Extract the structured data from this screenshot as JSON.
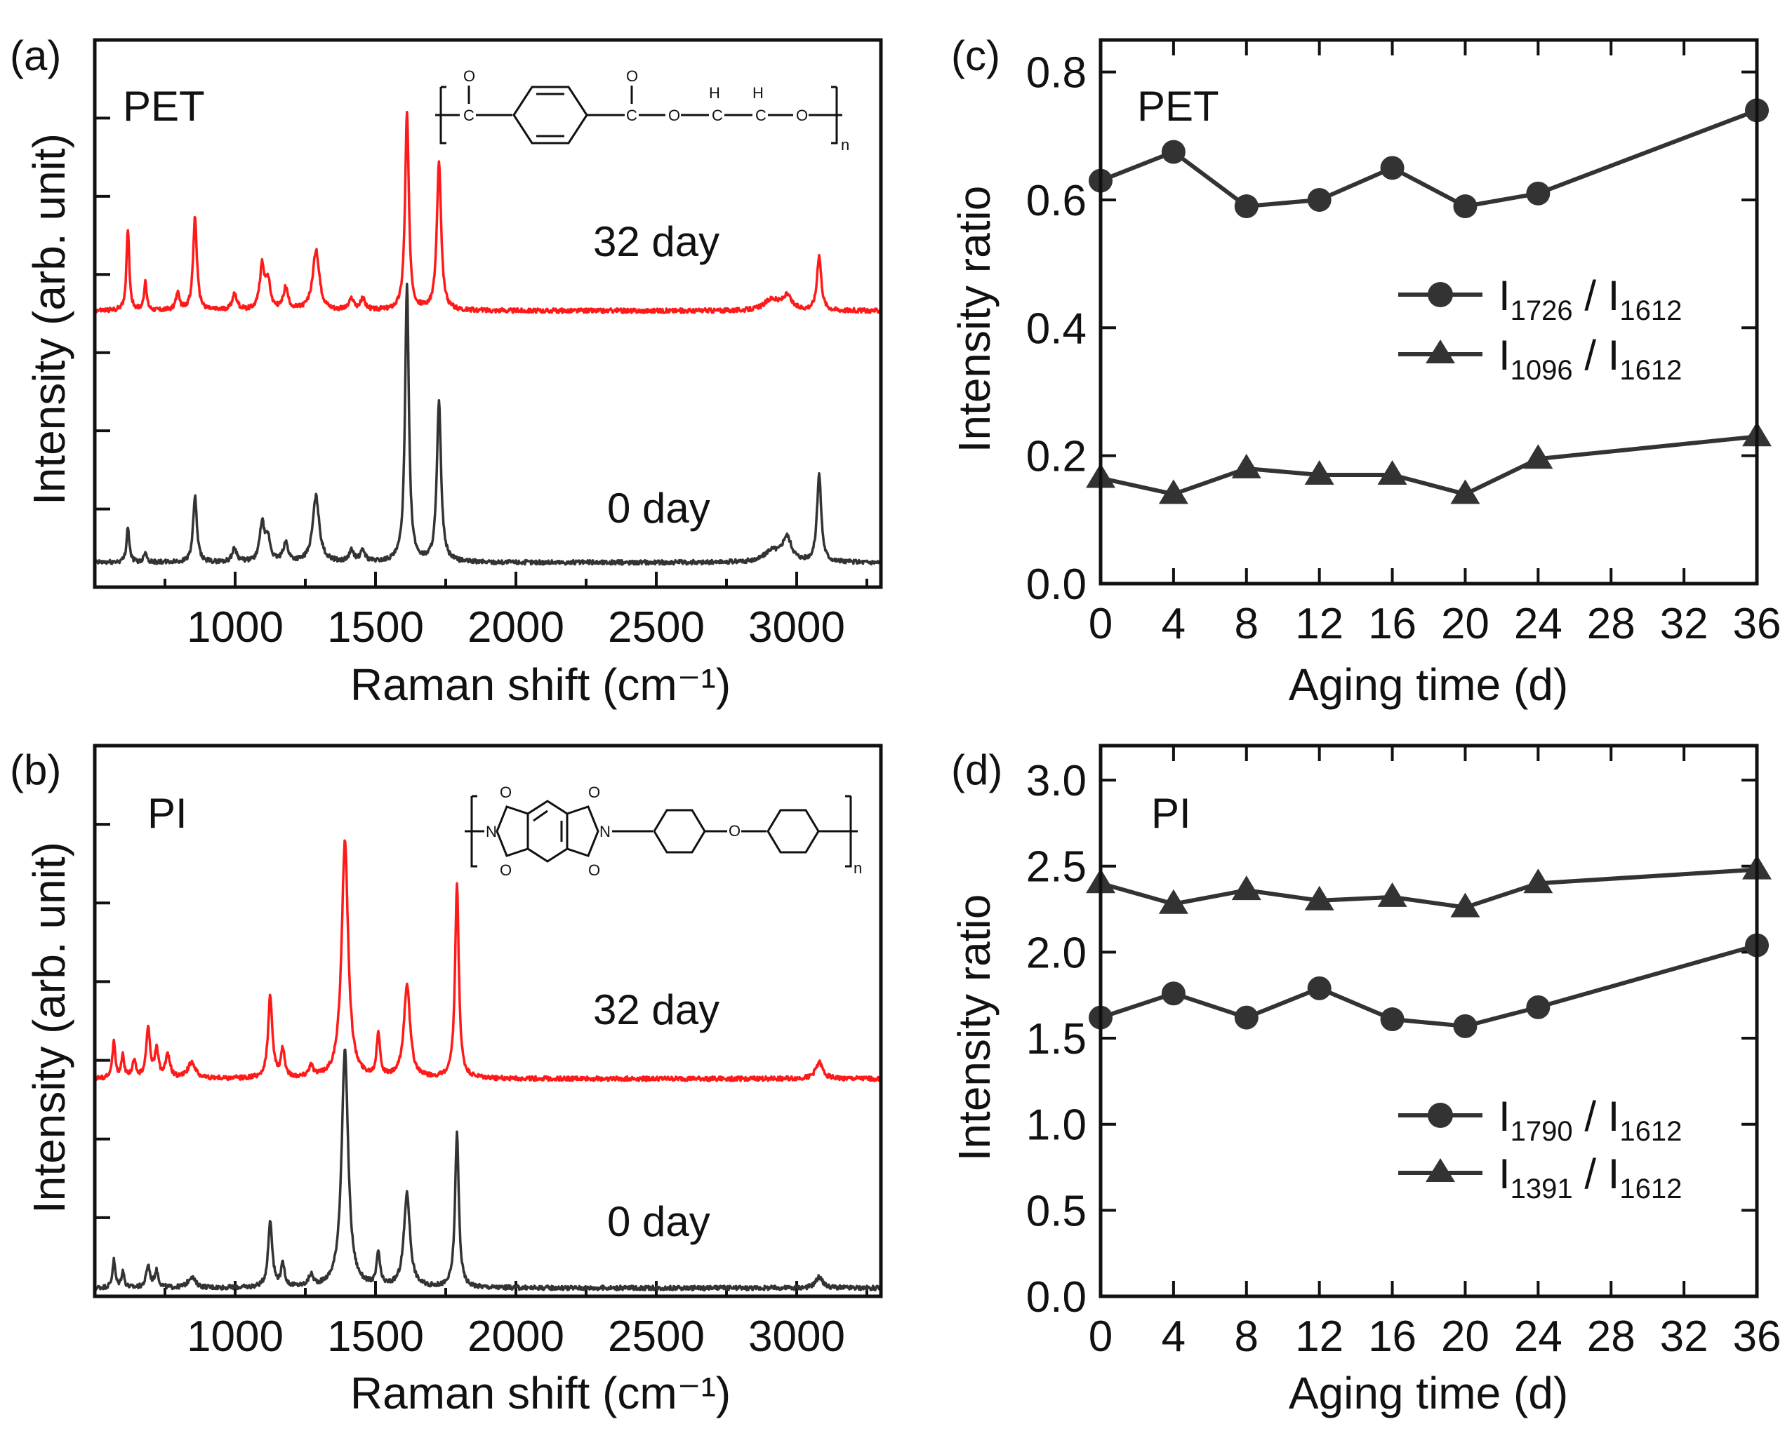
{
  "colors": {
    "day32": "#ff1a1a",
    "day0": "#333333",
    "marker": "#333333",
    "axis": "#111111"
  },
  "chart_data": [
    {
      "id": "a",
      "panel_label": "(a)",
      "type": "line",
      "title": "PET",
      "xlabel": "Raman shift (cm⁻¹)",
      "ylabel": "Intensity (arb. unit)",
      "xlim": [
        500,
        3300
      ],
      "ylim": [
        0,
        1
      ],
      "xticks": [
        1000,
        1500,
        2000,
        2500,
        3000
      ],
      "xtick_labels": [
        "1000",
        "1500",
        "2000",
        "2500",
        "3000"
      ],
      "series": [
        {
          "name": "32 day",
          "label": "32 day",
          "color": "#ff1a1a",
          "baseline": 0.505,
          "peaks": [
            [
              618,
              0.15,
              6
            ],
            [
              680,
              0.05,
              6
            ],
            [
              795,
              0.03,
              8
            ],
            [
              857,
              0.17,
              8
            ],
            [
              998,
              0.03,
              10
            ],
            [
              1096,
              0.08,
              10
            ],
            [
              1117,
              0.05,
              10
            ],
            [
              1180,
              0.04,
              10
            ],
            [
              1288,
              0.11,
              14
            ],
            [
              1415,
              0.02,
              10
            ],
            [
              1455,
              0.02,
              10
            ],
            [
              1612,
              0.36,
              8
            ],
            [
              1726,
              0.27,
              9
            ],
            [
              2910,
              0.02,
              30
            ],
            [
              2965,
              0.025,
              20
            ],
            [
              3080,
              0.1,
              9
            ]
          ]
        },
        {
          "name": "0 day",
          "label": "0 day",
          "color": "#333333",
          "baseline": 0.045,
          "peaks": [
            [
              618,
              0.065,
              6
            ],
            [
              680,
              0.02,
              6
            ],
            [
              857,
              0.12,
              8
            ],
            [
              998,
              0.025,
              10
            ],
            [
              1096,
              0.07,
              10
            ],
            [
              1117,
              0.04,
              10
            ],
            [
              1180,
              0.035,
              10
            ],
            [
              1288,
              0.12,
              14
            ],
            [
              1415,
              0.02,
              10
            ],
            [
              1455,
              0.02,
              10
            ],
            [
              1612,
              0.51,
              8
            ],
            [
              1726,
              0.29,
              9
            ],
            [
              2910,
              0.02,
              30
            ],
            [
              2965,
              0.045,
              20
            ],
            [
              3080,
              0.16,
              9
            ]
          ]
        }
      ]
    },
    {
      "id": "b",
      "panel_label": "(b)",
      "type": "line",
      "title": "PI",
      "xlabel": "Raman shift (cm⁻¹)",
      "ylabel": "Intensity (arb. unit)",
      "xlim": [
        500,
        3300
      ],
      "ylim": [
        0,
        1
      ],
      "xticks": [
        1000,
        1500,
        2000,
        2500,
        3000
      ],
      "xtick_labels": [
        "1000",
        "1500",
        "2000",
        "2500",
        "3000"
      ],
      "series": [
        {
          "name": "32 day",
          "label": "32 day",
          "color": "#ff1a1a",
          "baseline": 0.395,
          "peaks": [
            [
              568,
              0.07,
              6
            ],
            [
              600,
              0.04,
              6
            ],
            [
              640,
              0.03,
              8
            ],
            [
              690,
              0.09,
              8
            ],
            [
              720,
              0.05,
              8
            ],
            [
              760,
              0.04,
              10
            ],
            [
              845,
              0.03,
              15
            ],
            [
              1125,
              0.15,
              9
            ],
            [
              1170,
              0.05,
              8
            ],
            [
              1270,
              0.02,
              10
            ],
            [
              1391,
              0.43,
              14
            ],
            [
              1510,
              0.08,
              7
            ],
            [
              1612,
              0.17,
              13
            ],
            [
              1790,
              0.35,
              8
            ],
            [
              3080,
              0.03,
              15
            ]
          ]
        },
        {
          "name": "0 day",
          "label": "0 day",
          "color": "#333333",
          "baseline": 0.015,
          "peaks": [
            [
              568,
              0.05,
              6
            ],
            [
              600,
              0.03,
              6
            ],
            [
              690,
              0.04,
              8
            ],
            [
              720,
              0.03,
              8
            ],
            [
              845,
              0.02,
              15
            ],
            [
              1125,
              0.12,
              9
            ],
            [
              1170,
              0.04,
              8
            ],
            [
              1270,
              0.02,
              10
            ],
            [
              1391,
              0.43,
              14
            ],
            [
              1510,
              0.06,
              7
            ],
            [
              1612,
              0.17,
              13
            ],
            [
              1790,
              0.28,
              8
            ],
            [
              3080,
              0.02,
              15
            ]
          ]
        }
      ]
    },
    {
      "id": "c",
      "panel_label": "(c)",
      "type": "line",
      "title": "PET",
      "xlabel": "Aging time (d)",
      "ylabel": "Intensity ratio",
      "xlim": [
        0,
        36
      ],
      "ylim": [
        0,
        0.85
      ],
      "xticks": [
        0,
        4,
        8,
        12,
        16,
        20,
        24,
        28,
        32,
        36
      ],
      "xtick_labels": [
        "0",
        "4",
        "8",
        "12",
        "16",
        "20",
        "24",
        "28",
        "32",
        "36"
      ],
      "yticks": [
        0,
        0.2,
        0.4,
        0.6,
        0.8
      ],
      "ytick_labels": [
        "0.0",
        "0.2",
        "0.4",
        "0.6",
        "0.8"
      ],
      "x": [
        0,
        4,
        8,
        12,
        16,
        20,
        24,
        36
      ],
      "series": [
        {
          "name": "I1726 / I1612",
          "base": "I",
          "sub1": "1726",
          "slash": " / I",
          "sub2": "1612",
          "marker": "circle",
          "values": [
            0.63,
            0.675,
            0.59,
            0.6,
            0.65,
            0.59,
            0.61,
            0.74
          ]
        },
        {
          "name": "I1096 / I1612",
          "base": "I",
          "sub1": "1096",
          "slash": " / I",
          "sub2": "1612",
          "marker": "triangle",
          "values": [
            0.165,
            0.14,
            0.18,
            0.17,
            0.17,
            0.14,
            0.195,
            0.23
          ]
        }
      ]
    },
    {
      "id": "d",
      "panel_label": "(d)",
      "type": "line",
      "title": "PI",
      "xlabel": "Aging time (d)",
      "ylabel": "Intensity ratio",
      "xlim": [
        0,
        36
      ],
      "ylim": [
        0,
        3.2
      ],
      "xticks": [
        0,
        4,
        8,
        12,
        16,
        20,
        24,
        28,
        32,
        36
      ],
      "xtick_labels": [
        "0",
        "4",
        "8",
        "12",
        "16",
        "20",
        "24",
        "28",
        "32",
        "36"
      ],
      "yticks": [
        0,
        0.5,
        1.0,
        1.5,
        2.0,
        2.5,
        3.0
      ],
      "ytick_labels": [
        "0.0",
        "0.5",
        "1.0",
        "1.5",
        "2.0",
        "2.5",
        "3.0"
      ],
      "x": [
        0,
        4,
        8,
        12,
        16,
        20,
        24,
        36
      ],
      "series": [
        {
          "name": "I1790 / I1612",
          "base": "I",
          "sub1": "1790",
          "slash": " / I",
          "sub2": "1612",
          "marker": "circle",
          "values": [
            1.62,
            1.76,
            1.62,
            1.79,
            1.61,
            1.57,
            1.68,
            2.04
          ]
        },
        {
          "name": "I1391 / I1612",
          "base": "I",
          "sub1": "1391",
          "slash": " / I",
          "sub2": "1612",
          "marker": "triangle",
          "values": [
            2.4,
            2.28,
            2.36,
            2.3,
            2.32,
            2.26,
            2.4,
            2.48
          ]
        }
      ]
    }
  ]
}
